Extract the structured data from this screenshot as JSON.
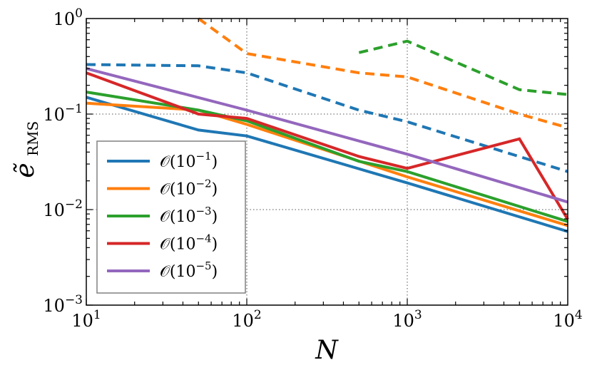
{
  "chart_data": {
    "type": "line",
    "xscale": "log",
    "yscale": "log",
    "xlim": [
      10,
      10000
    ],
    "ylim": [
      0.001,
      1
    ],
    "xlabel": "N",
    "ylabel": "ẽ",
    "ylabel_sub": "RMS",
    "grid": true,
    "legend_position": "lower-left",
    "x_ticks": [
      {
        "value": 10,
        "base": "10",
        "exp": "1"
      },
      {
        "value": 100,
        "base": "10",
        "exp": "2"
      },
      {
        "value": 1000,
        "base": "10",
        "exp": "3"
      },
      {
        "value": 10000,
        "base": "10",
        "exp": "4"
      }
    ],
    "y_ticks": [
      {
        "value": 1,
        "base": "10",
        "exp": "0"
      },
      {
        "value": 0.1,
        "base": "10",
        "exp": "−1"
      },
      {
        "value": 0.01,
        "base": "10",
        "exp": "−2"
      },
      {
        "value": 0.001,
        "base": "10",
        "exp": "−3"
      }
    ],
    "series": [
      {
        "name": "𝒪(10",
        "legend_exp": "−1",
        "color": "#1f77b4",
        "solid": {
          "x": [
            10,
            50,
            100,
            1000,
            10000
          ],
          "y": [
            0.15,
            0.068,
            0.059,
            0.019,
            0.0059
          ]
        },
        "dashed": {
          "x": [
            10,
            50,
            100,
            500,
            1000,
            10000
          ],
          "y": [
            0.33,
            0.32,
            0.27,
            0.11,
            0.083,
            0.025
          ]
        }
      },
      {
        "name": "𝒪(10",
        "legend_exp": "−2",
        "color": "#ff7f0e",
        "solid": {
          "x": [
            10,
            50,
            100,
            1000,
            10000
          ],
          "y": [
            0.13,
            0.11,
            0.078,
            0.022,
            0.0068
          ]
        },
        "dashed": {
          "x": [
            50,
            100,
            500,
            1000,
            5000,
            10000
          ],
          "y": [
            1.0,
            0.43,
            0.27,
            0.245,
            0.1,
            0.072
          ]
        }
      },
      {
        "name": "𝒪(10",
        "legend_exp": "−3",
        "color": "#2ca02c",
        "solid": {
          "x": [
            10,
            50,
            100,
            500,
            1000,
            10000
          ],
          "y": [
            0.17,
            0.11,
            0.085,
            0.032,
            0.025,
            0.0075
          ]
        },
        "dashed": {
          "x": [
            500,
            1000,
            5000,
            10000
          ],
          "y": [
            0.44,
            0.58,
            0.18,
            0.16
          ]
        }
      },
      {
        "name": "𝒪(10",
        "legend_exp": "−4",
        "color": "#d62728",
        "solid": {
          "x": [
            10,
            50,
            100,
            500,
            1000,
            5000,
            10000
          ],
          "y": [
            0.27,
            0.1,
            0.09,
            0.036,
            0.027,
            0.055,
            0.0079
          ]
        },
        "dashed": null
      },
      {
        "name": "𝒪(10",
        "legend_exp": "−5",
        "color": "#9467bd",
        "solid": {
          "x": [
            10,
            100,
            1000,
            10000
          ],
          "y": [
            0.3,
            0.11,
            0.038,
            0.012
          ]
        },
        "dashed": null
      }
    ]
  }
}
